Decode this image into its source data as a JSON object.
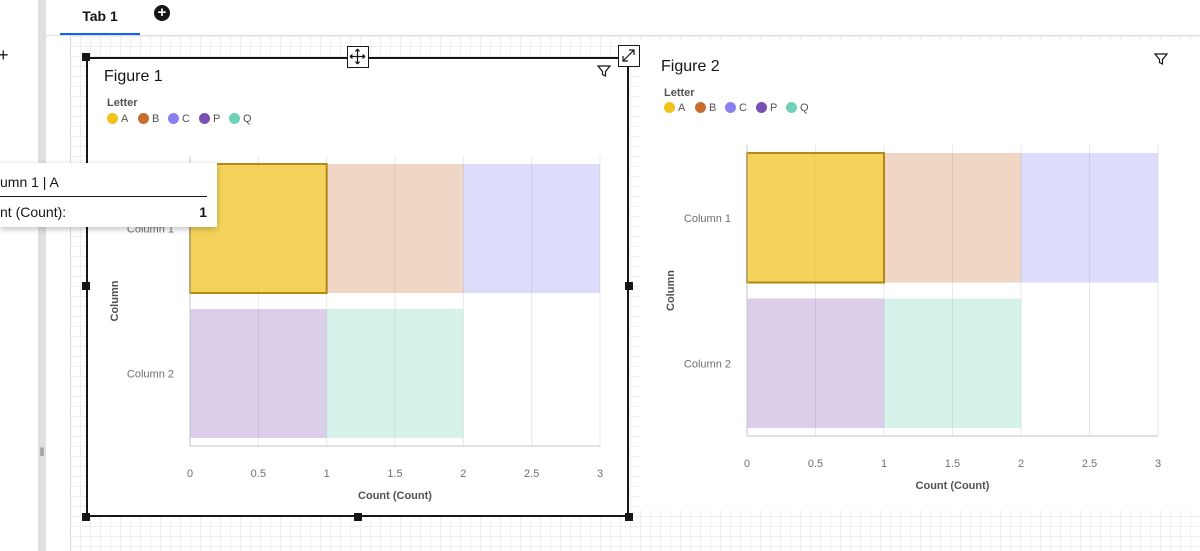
{
  "tabs": [
    {
      "label": "Tab 1",
      "active": true
    }
  ],
  "add_tab_icon": "plus-circle-icon",
  "left_panel": {
    "add_icon": "plus-icon",
    "resize_handle_icon": "drag-handle-icon"
  },
  "figures": [
    {
      "title": "Figure 1",
      "selected": true,
      "filter_icon": "filter-icon"
    },
    {
      "title": "Figure 2",
      "selected": false,
      "filter_icon": "filter-icon"
    }
  ],
  "legend": {
    "title": "Letter",
    "items": [
      {
        "label": "A",
        "color": "#f1c21b"
      },
      {
        "label": "B",
        "color": "#c86d2e"
      },
      {
        "label": "C",
        "color": "#8a80f0"
      },
      {
        "label": "P",
        "color": "#7a4fb3"
      },
      {
        "label": "Q",
        "color": "#6fd1b8"
      }
    ]
  },
  "tooltip": {
    "title": "umn 1 | A",
    "label": "nt (Count):",
    "value": "1"
  },
  "chart_data": [
    {
      "type": "bar",
      "orientation": "horizontal",
      "stacked": true,
      "categories": [
        "Column 1",
        "Column 2"
      ],
      "series": [
        {
          "name": "A",
          "values": [
            1,
            0
          ]
        },
        {
          "name": "B",
          "values": [
            1,
            0
          ]
        },
        {
          "name": "C",
          "values": [
            1,
            0
          ]
        },
        {
          "name": "P",
          "values": [
            0,
            1
          ]
        },
        {
          "name": "Q",
          "values": [
            0,
            1
          ]
        }
      ],
      "xlabel": "Count (Count)",
      "ylabel": "Column",
      "xlim": [
        0,
        3
      ],
      "xticks": [
        "0",
        "0.5",
        "1",
        "1.5",
        "2",
        "2.5",
        "3"
      ],
      "grid": true,
      "highlighted": {
        "category": "Column 1",
        "series": "A"
      }
    },
    {
      "type": "bar",
      "orientation": "horizontal",
      "stacked": true,
      "categories": [
        "Column 1",
        "Column 2"
      ],
      "series": [
        {
          "name": "A",
          "values": [
            1,
            0
          ]
        },
        {
          "name": "B",
          "values": [
            1,
            0
          ]
        },
        {
          "name": "C",
          "values": [
            1,
            0
          ]
        },
        {
          "name": "P",
          "values": [
            0,
            1
          ]
        },
        {
          "name": "Q",
          "values": [
            0,
            1
          ]
        }
      ],
      "xlabel": "Count (Count)",
      "ylabel": "Column",
      "xlim": [
        0,
        3
      ],
      "xticks": [
        "0",
        "0.5",
        "1",
        "1.5",
        "2",
        "2.5",
        "3"
      ],
      "grid": true,
      "highlighted": {
        "category": "Column 1",
        "series": "A"
      }
    }
  ]
}
